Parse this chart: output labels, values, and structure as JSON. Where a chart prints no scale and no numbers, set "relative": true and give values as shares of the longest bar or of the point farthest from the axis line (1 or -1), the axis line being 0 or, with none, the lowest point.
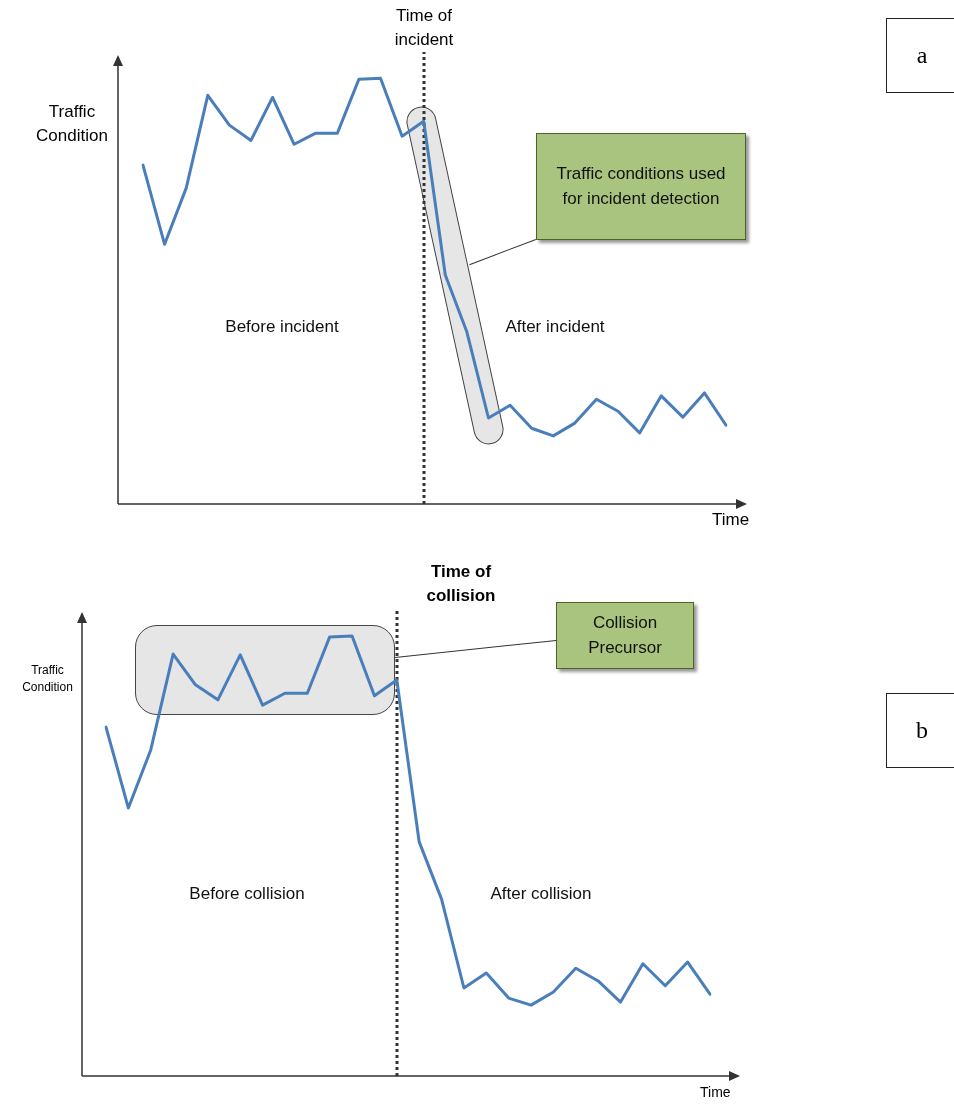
{
  "chart_data": [
    {
      "type": "line",
      "relative": true,
      "xlabel": "Time",
      "ylabel": "Traffic Condition",
      "categories": [
        null,
        null,
        null,
        null,
        null,
        null,
        null,
        null,
        null,
        null,
        null,
        null,
        null,
        null,
        null,
        null,
        null,
        null,
        null,
        null,
        null,
        null,
        null,
        null,
        null,
        null,
        null,
        null
      ],
      "tick_labels": false,
      "legend": false,
      "marker": "none",
      "series": [
        {
          "color": "#4a7ebb",
          "values": [
            0.796,
            0.61,
            0.742,
            0.96,
            0.89,
            0.854,
            0.955,
            0.845,
            0.871,
            0.871,
            0.998,
            1,
            0.864,
            0.899,
            0.538,
            0.404,
            0.202,
            0.232,
            0.178,
            0.16,
            0.19,
            0.246,
            0.218,
            0.167,
            0.254,
            0.204,
            0.261,
            0.185
          ]
        }
      ],
      "ref_lines": [
        {
          "axis": "x",
          "label": "Time of incident",
          "line_style": "dotted",
          "color": "#333333"
        }
      ],
      "annotations": [
        "Before incident",
        "After incident",
        "Traffic conditions used for incident detection",
        "a"
      ]
    },
    {
      "type": "line",
      "relative": true,
      "xlabel": "Time",
      "ylabel": "Traffic Condition",
      "categories": [
        null,
        null,
        null,
        null,
        null,
        null,
        null,
        null,
        null,
        null,
        null,
        null,
        null,
        null,
        null,
        null,
        null,
        null,
        null,
        null,
        null,
        null,
        null,
        null,
        null,
        null,
        null,
        null
      ],
      "tick_labels": false,
      "legend": false,
      "marker": "none",
      "series": [
        {
          "color": "#4a7ebb",
          "values": [
            0.793,
            0.609,
            0.741,
            0.959,
            0.889,
            0.855,
            0.957,
            0.843,
            0.87,
            0.87,
            0.998,
            1,
            0.864,
            0.9,
            0.532,
            0.402,
            0.2,
            0.234,
            0.177,
            0.161,
            0.191,
            0.245,
            0.216,
            0.168,
            0.255,
            0.205,
            0.259,
            0.186
          ]
        }
      ],
      "ref_lines": [
        {
          "axis": "x",
          "label": "Time of collision",
          "line_style": "dotted",
          "color": "#333333"
        }
      ],
      "annotations": [
        "Before collision",
        "After collision",
        "Collision Precursor",
        "b"
      ]
    }
  ]
}
